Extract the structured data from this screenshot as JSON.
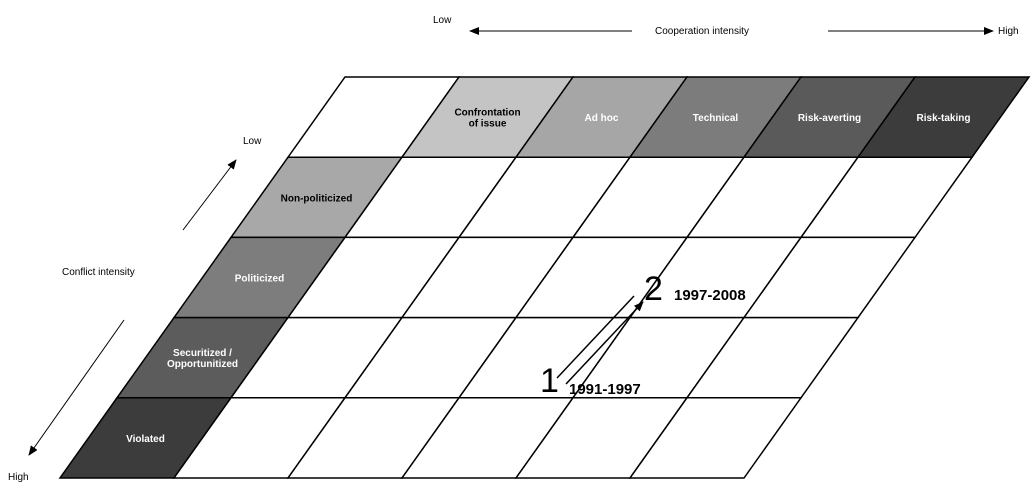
{
  "cooperation_axis": {
    "low": "Low",
    "title": "Cooperation intensity",
    "high": "High",
    "levels": [
      {
        "label": "Confrontation\nof issue",
        "fill": "#c4c4c4",
        "text": "#000000"
      },
      {
        "label": "Ad hoc",
        "fill": "#a6a6a6",
        "text": "#ffffff"
      },
      {
        "label": "Technical",
        "fill": "#7c7c7c",
        "text": "#ffffff"
      },
      {
        "label": "Risk-averting",
        "fill": "#5a5a5a",
        "text": "#ffffff"
      },
      {
        "label": "Risk-taking",
        "fill": "#3c3c3c",
        "text": "#ffffff"
      }
    ]
  },
  "conflict_axis": {
    "low": "Low",
    "title": "Conflict intensity",
    "high": "High",
    "levels": [
      {
        "label": "Non-politicized",
        "fill": "#a8a8a8",
        "text": "#000000"
      },
      {
        "label": "Politicized",
        "fill": "#7d7d7d",
        "text": "#ffffff"
      },
      {
        "label": "Securitized /\nOpportunitized",
        "fill": "#5c5c5c",
        "text": "#ffffff"
      },
      {
        "label": "Violated",
        "fill": "#3c3c3c",
        "text": "#ffffff"
      }
    ]
  },
  "trajectory": [
    {
      "number": "1",
      "period": "1991-1997"
    },
    {
      "number": "2",
      "period": "1997-2008"
    }
  ]
}
